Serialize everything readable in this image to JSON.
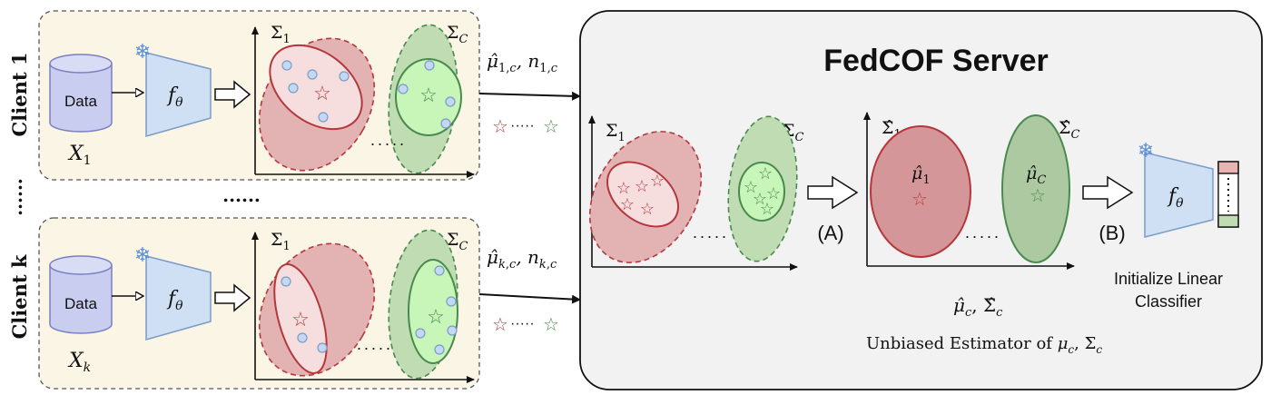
{
  "clients": [
    {
      "label": "Client 1",
      "data_label": "Data",
      "x_base": "X",
      "x_sub": "1",
      "model_base": "f",
      "model_sub": "θ",
      "sigma1_sub": "1",
      "sigmaC_sub": "C",
      "message": "μ̂1,c, n1,c"
    },
    {
      "label": "Client k",
      "data_label": "Data",
      "x_base": "X",
      "x_sub": "k",
      "model_base": "f",
      "model_sub": "θ",
      "sigma1_sub": "1",
      "sigmaC_sub": "C",
      "message": "μ̂k,c, nk,c"
    }
  ],
  "dots_between_clients": "......",
  "dots_vertical": "......",
  "plot_dots": ".....",
  "star_dots": "·····",
  "server": {
    "title": "FedCOF Server",
    "step_a": "(A)",
    "step_b": "(B)",
    "sigma_base": "Σ",
    "hat_sigma_base": "Σ̂",
    "mu_hat_1": "μ̂1",
    "mu_hat_c": "μ̂C",
    "estimates_label": "μ̂c, Σ̂c",
    "estimator_caption": "Unbiased Estimator of μc, Σc",
    "init_line1": "Initialize Linear",
    "init_line2": "Classifier",
    "model_base": "f",
    "model_sub": "θ"
  },
  "colors": {
    "red_fill": "#e8b3b3",
    "red_fill_light": "#f7dede",
    "red_stroke": "#b5373c",
    "green_fill": "#bfdcb3",
    "green_fill_light": "#c8f5b8",
    "green_stroke": "#4a8a4e",
    "client_bg": "#fbf5e6",
    "server_bg": "#f2f2f2",
    "model_fill": "#cfe0f5",
    "model_stroke": "#7a9cc6",
    "data_fill": "#c9cdf0",
    "dot_fill": "#c5d8f2"
  }
}
